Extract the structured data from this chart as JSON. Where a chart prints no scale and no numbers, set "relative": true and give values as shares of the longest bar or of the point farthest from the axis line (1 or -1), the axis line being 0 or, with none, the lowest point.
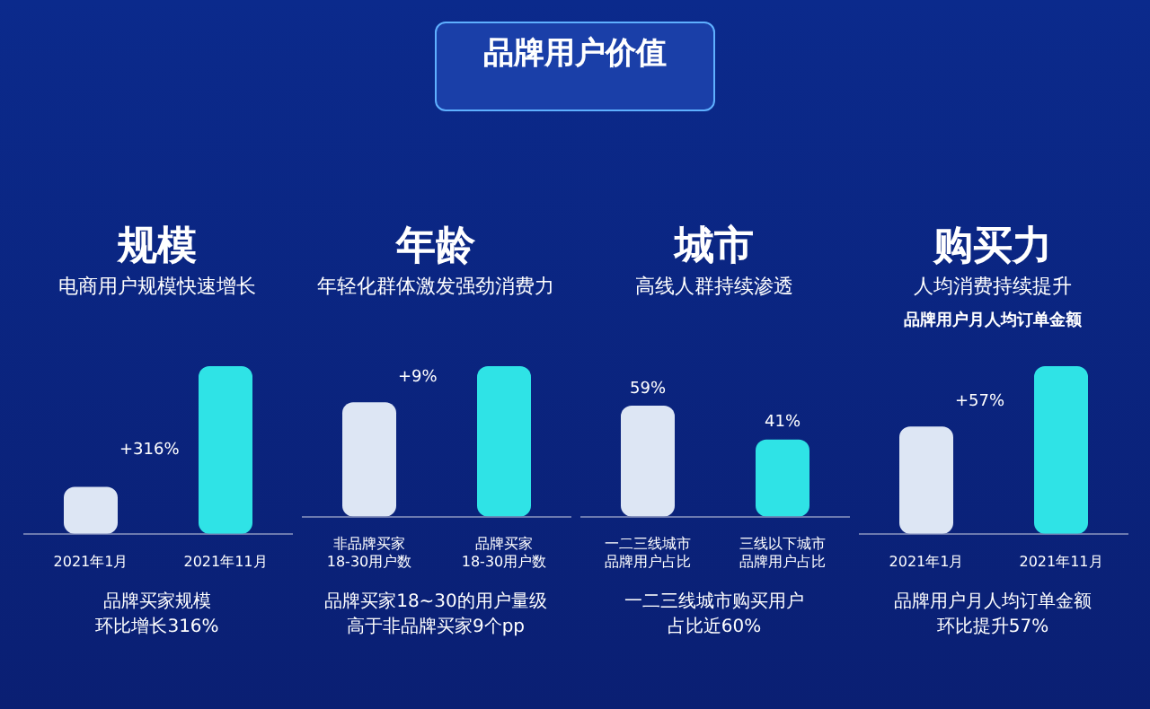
{
  "chart_data": [
    {
      "type": "other",
      "title": "品牌用户价值"
    },
    {
      "type": "bar",
      "title": "规模",
      "subtitle": "电商用户规模快速增长",
      "categories": [
        "2021年1月",
        "2021年11月"
      ],
      "values": [
        0.28,
        1
      ],
      "relative": true,
      "colors": [
        "#dde6f4",
        "#2fe3e6"
      ],
      "annotations": [
        "+316%",
        "品牌买家规模",
        "环比增长316%"
      ]
    },
    {
      "type": "bar",
      "title": "年龄",
      "subtitle": "年轻化群体激发强劲消费力",
      "categories": [
        "非品牌买家18-30用户数",
        "品牌买家18-30用户数"
      ],
      "values": [
        0.76,
        1
      ],
      "relative": true,
      "colors": [
        "#dde6f4",
        "#2fe3e6"
      ],
      "annotations": [
        "+9%",
        "品牌买家18~30的用户量级",
        "高于非品牌买家9个pp"
      ]
    },
    {
      "type": "bar",
      "title": "城市",
      "subtitle": "高线人群持续渗透",
      "categories": [
        "一二三线城市品牌用户占比",
        "三线以下城市品牌用户占比"
      ],
      "values": [
        59,
        41
      ],
      "value_labels": [
        "59%",
        "41%"
      ],
      "colors": [
        "#dde6f4",
        "#2fe3e6"
      ],
      "annotations": [
        "一二三线城市购买用户",
        "占比近60%"
      ]
    },
    {
      "type": "bar",
      "title": "购买力",
      "subtitle": "人均消费持续提升",
      "ylabel": "品牌用户月人均订单金额",
      "categories": [
        "2021年1月",
        "2021年11月"
      ],
      "values": [
        0.64,
        1
      ],
      "relative": true,
      "colors": [
        "#dde6f4",
        "#2fe3e6"
      ],
      "annotations": [
        "+57%",
        "品牌用户月人均订单金额",
        "环比提升57%"
      ]
    }
  ]
}
